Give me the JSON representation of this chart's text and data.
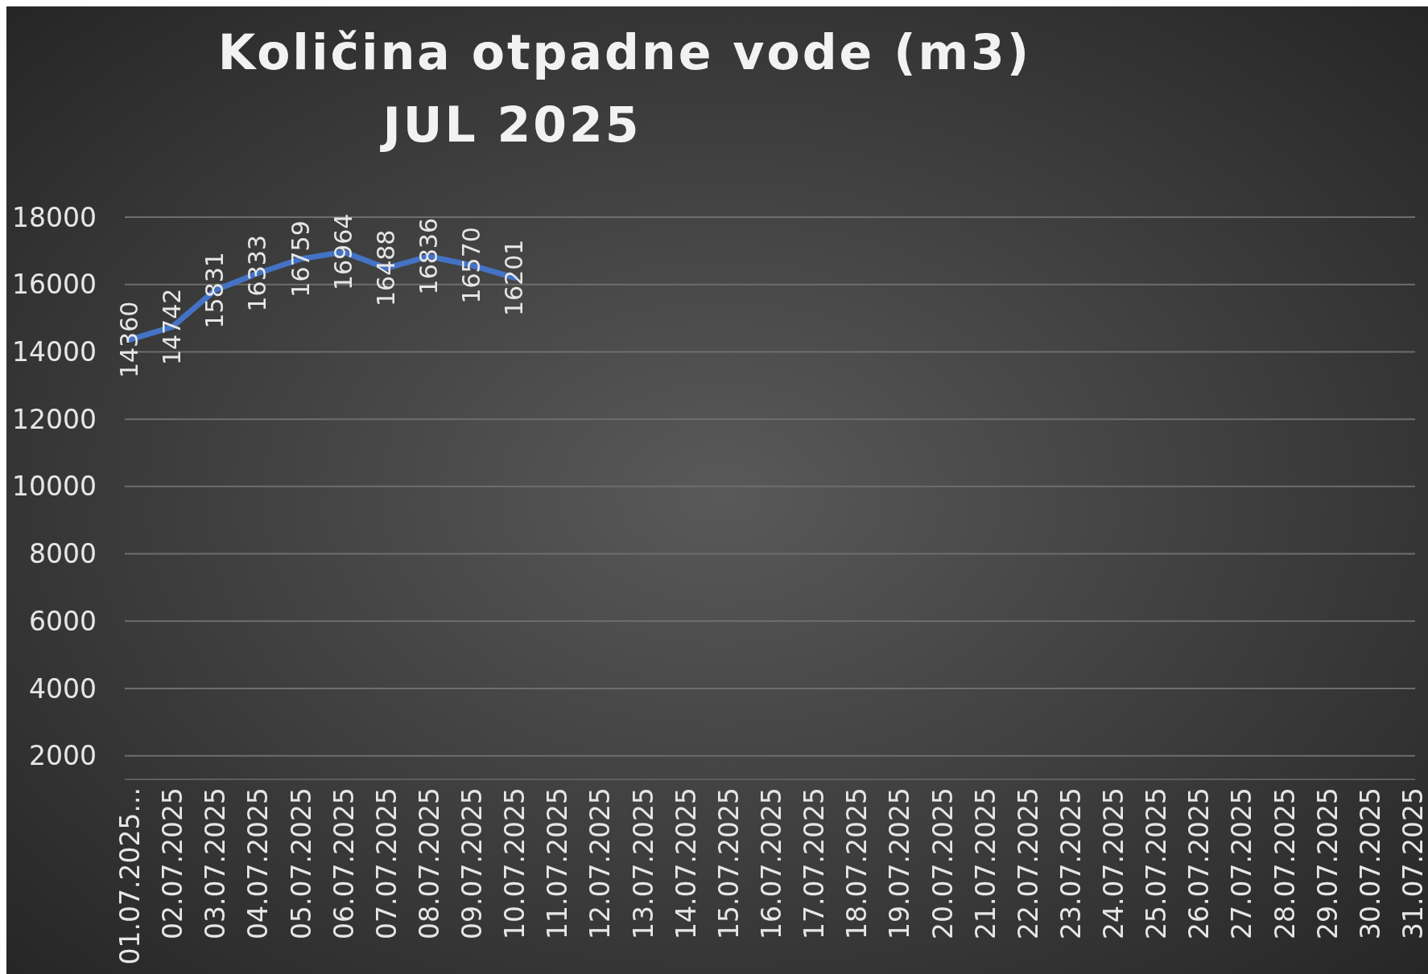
{
  "chart_data": {
    "type": "line",
    "title": "Količina otpadne vode (m3)",
    "subtitle": "JUL 2025",
    "categories": [
      "01.07.2025...",
      "02.07.2025",
      "03.07.2025",
      "04.07.2025",
      "05.07.2025",
      "06.07.2025",
      "07.07.2025",
      "08.07.2025",
      "09.07.2025",
      "10.07.2025",
      "11.07.2025",
      "12.07.2025",
      "13.07.2025",
      "14.07.2025",
      "15.07.2025",
      "16.07.2025",
      "17.07.2025",
      "18.07.2025",
      "19.07.2025",
      "20.07.2025",
      "21.07.2025",
      "22.07.2025",
      "23.07.2025",
      "24.07.2025",
      "25.07.2025",
      "26.07.2025",
      "27.07.2025",
      "28.07.2025",
      "29.07.2025",
      "30.07.2025",
      "31.07.2025"
    ],
    "series": [
      {
        "color": "#4472c4",
        "values": [
          14360,
          14742,
          15831,
          16333,
          16759,
          16964,
          16488,
          16836,
          16570,
          16201,
          null,
          null,
          null,
          null,
          null,
          null,
          null,
          null,
          null,
          null,
          null,
          null,
          null,
          null,
          null,
          null,
          null,
          null,
          null,
          null,
          null
        ]
      }
    ],
    "ylim": [
      1300,
      18000
    ],
    "yticks": [
      2000,
      4000,
      6000,
      8000,
      10000,
      12000,
      14000,
      16000,
      18000
    ],
    "grid": "y",
    "data_labels": true,
    "marker": "none",
    "line_style": "solid"
  }
}
